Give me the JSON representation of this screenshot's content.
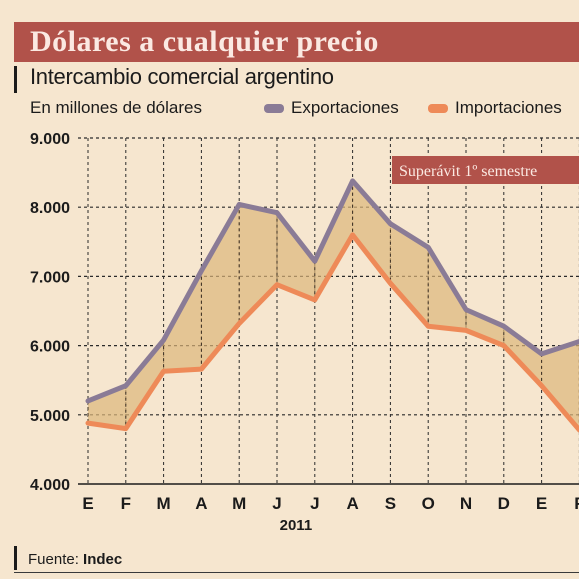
{
  "header": {
    "title": "Dólares a cualquier precio",
    "subtitle": "Intercambio comercial argentino",
    "units": "En millones de dólares"
  },
  "legend": {
    "items": [
      {
        "label": "Exportaciones",
        "color": "#8a7b96"
      },
      {
        "label": "Importaciones",
        "color": "#ee8a58"
      }
    ]
  },
  "annotation": {
    "text": "Superávit 1º semestre",
    "color": "#b1524a"
  },
  "source": {
    "label": "Fuente:",
    "name": "Indec"
  },
  "chart_data": {
    "type": "area",
    "categories": [
      "E",
      "F",
      "M",
      "A",
      "M",
      "J",
      "J",
      "A",
      "S",
      "O",
      "N",
      "D",
      "E",
      "F"
    ],
    "year_label": "2011",
    "ylim": [
      4000,
      9000
    ],
    "yticks": [
      4000,
      5000,
      6000,
      7000,
      8000,
      9000
    ],
    "ytick_labels": [
      "4.000",
      "5.000",
      "6.000",
      "7.000",
      "8.000",
      "9.000"
    ],
    "grid": true,
    "legend_position": "top-right",
    "fill_color": "#ddb77b",
    "series": [
      {
        "name": "Exportaciones",
        "color": "#8a7b96",
        "values": [
          5200,
          5420,
          6080,
          7080,
          8040,
          7920,
          7220,
          8380,
          7760,
          7420,
          6520,
          6280,
          5880,
          6060
        ]
      },
      {
        "name": "Importaciones",
        "color": "#ee8a58",
        "values": [
          4880,
          4800,
          5630,
          5660,
          6320,
          6880,
          6660,
          7600,
          6900,
          6280,
          6220,
          6000,
          5420,
          4780
        ]
      }
    ]
  }
}
